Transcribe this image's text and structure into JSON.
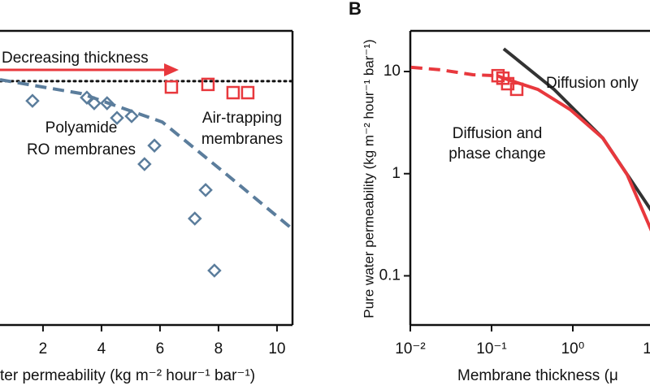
{
  "chart_data": [
    {
      "type": "scatter",
      "xlabel": "ter permeability (kg m⁻² hour⁻¹ bar⁻¹)",
      "xlim": [
        0.53,
        10.53
      ],
      "xticks": [
        2,
        4,
        6,
        8,
        10
      ],
      "ylim": [
        0,
        100
      ],
      "reference_line": {
        "value": 82.9,
        "color": "#111111"
      },
      "series": [
        {
          "marker": "diamond",
          "color": "#5b7d9c",
          "x": [
            1.64,
            3.5,
            3.75,
            4.19,
            4.53,
            5.03,
            5.81,
            5.47,
            7.56,
            7.19,
            7.86
          ],
          "values": [
            76.2,
            77.3,
            75.4,
            75.4,
            70.4,
            71.0,
            61.0,
            54.7,
            45.9,
            36.2,
            18.5
          ]
        },
        {
          "marker": "square",
          "color": "#e8383d",
          "x": [
            6.39,
            7.64,
            8.5,
            9.0
          ],
          "values": [
            80.9,
            81.8,
            79.0,
            79.0
          ]
        },
        {
          "line": "dashed",
          "color": "#5b7d9c",
          "x": [
            0.53,
            3.3,
            6.08,
            8.3,
            10.53
          ],
          "values": [
            83.4,
            78.7,
            69.0,
            51.0,
            32.6
          ]
        }
      ],
      "annotations": [
        {
          "lines": [
            "Decreasing thickness"
          ],
          "color": "#e8383d"
        },
        {
          "lines": [
            "Polyamide",
            "RO membranes"
          ],
          "color": "#5b7d9c"
        },
        {
          "lines": [
            "Air-trapping",
            "membranes"
          ],
          "color": "#e8383d"
        }
      ]
    },
    {
      "type": "scatter",
      "panel_label": "B",
      "xlabel": "Membrane thickness (μ",
      "ylabel": "Pure water permeability (kg m⁻² hour⁻¹ bar⁻¹)",
      "xscale": "log",
      "yscale": "log",
      "xlim": [
        0.01,
        10
      ],
      "xticks": [
        {
          "value": 0.01,
          "label": "10⁻²"
        },
        {
          "value": 0.1,
          "label": "10⁻¹"
        },
        {
          "value": 1,
          "label": "10⁰"
        },
        {
          "value": 10,
          "label": "10¹"
        }
      ],
      "ylim": [
        0.033,
        25
      ],
      "yticks": [
        0.1,
        1,
        10
      ],
      "series": [
        {
          "line": "solid",
          "color": "#333333",
          "x": [
            0.141,
            0.589,
            2.34,
            9.33
          ],
          "values": [
            16.7,
            6.68,
            2.23,
            0.431
          ]
        },
        {
          "line": "solid",
          "color": "#e8383d",
          "x": [
            0.117,
            0.148,
            0.372,
            0.93,
            2.34,
            4.66,
            9.33
          ],
          "values": [
            9.1,
            8.49,
            6.68,
            4.24,
            2.23,
            0.98,
            0.274
          ]
        },
        {
          "line": "dashed",
          "color": "#e8383d",
          "x": [
            0.0102,
            0.0234,
            0.059,
            0.117
          ],
          "values": [
            11.0,
            10.4,
            9.3,
            9.1
          ]
        },
        {
          "marker": "square",
          "color": "#e8383d",
          "x": [
            0.12,
            0.138,
            0.158,
            0.204
          ],
          "values": [
            9.1,
            8.6,
            7.6,
            6.7
          ]
        }
      ],
      "annotations": [
        {
          "lines": [
            "Diffusion only"
          ],
          "color": "#333333"
        },
        {
          "lines": [
            "Diffusion and",
            "phase change"
          ],
          "color": "#e8383d"
        }
      ]
    }
  ]
}
